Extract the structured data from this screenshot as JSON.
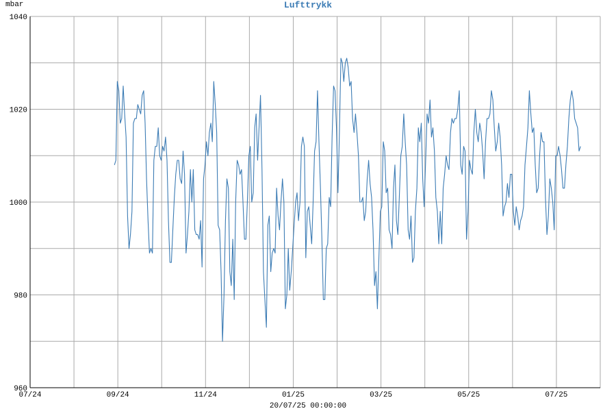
{
  "chart_data": {
    "type": "line",
    "title": "Lufttrykk",
    "ylabel": "mbar",
    "xlabel": "",
    "footer": "20/07/25 00:00:00",
    "ylim": [
      960,
      1040
    ],
    "yticks": [
      960,
      980,
      1000,
      1020,
      1040
    ],
    "x_ticklabels": [
      "07/24",
      "09/24",
      "11/24",
      "01/25",
      "03/25",
      "05/25",
      "07/25"
    ],
    "x_months_total": 13,
    "grid": true,
    "line_color": "#3b7bb4",
    "series": [
      {
        "values": [
          1008,
          1009,
          1026,
          1024,
          1017,
          1018,
          1025,
          1019,
          1014,
          997,
          990,
          993,
          998,
          1017,
          1018,
          1018,
          1021,
          1020,
          1019,
          1023,
          1024,
          1017,
          1005,
          996,
          989,
          990,
          989,
          1009,
          1012,
          1012,
          1016,
          1010,
          1009,
          1012,
          1011,
          1014,
          1009,
          996,
          987,
          987,
          994,
          1001,
          1006,
          1009,
          1009,
          1005,
          1004,
          1011,
          1006,
          989,
          993,
          998,
          1007,
          1000,
          1007,
          994,
          993,
          993,
          992,
          996,
          986,
          1005,
          1008,
          1013,
          1010,
          1015,
          1017,
          1013,
          1026,
          1021,
          1015,
          995,
          994,
          985,
          970,
          980,
          996,
          1005,
          1003,
          985,
          982,
          992,
          979,
          1000,
          1009,
          1008,
          1006,
          1007,
          1000,
          992,
          992,
          1000,
          1010,
          1012,
          1000,
          1002,
          1016,
          1019,
          1009,
          1016,
          1023,
          1007,
          985,
          979,
          973,
          995,
          997,
          985,
          989,
          990,
          989,
          1003,
          997,
          994,
          1000,
          1005,
          1000,
          977,
          980,
          990,
          981,
          985,
          990,
          995,
          1000,
          1002,
          996,
          1000,
          1012,
          1014,
          1012,
          988,
          998,
          999,
          995,
          991,
          1000,
          1011,
          1013,
          1024,
          1013,
          1003,
          992,
          979,
          979,
          990,
          991,
          1001,
          999,
          1014,
          1025,
          1024,
          1016,
          1002,
          1015,
          1031,
          1030,
          1026,
          1030,
          1031,
          1029,
          1025,
          1026,
          1018,
          1015,
          1019,
          1015,
          1010,
          1000,
          1000,
          1001,
          996,
          998,
          1005,
          1009,
          1004,
          1001,
          994,
          982,
          985,
          977,
          988,
          998,
          999,
          1013,
          1011,
          1002,
          1003,
          994,
          993,
          990,
          1003,
          1008,
          996,
          993,
          1001,
          1010,
          1012,
          1019,
          1013,
          1008,
          994,
          992,
          997,
          987,
          988,
          998,
          1003,
          1016,
          1013,
          1017,
          1005,
          999,
          1009,
          1019,
          1017,
          1022,
          1014,
          1016,
          1011,
          1001,
          998,
          991,
          998,
          991,
          1003,
          1006,
          1010,
          1008,
          1007,
          1015,
          1018,
          1017,
          1018,
          1018,
          1020,
          1024,
          1008,
          1006,
          1012,
          1011,
          992,
          998,
          1009,
          1007,
          1006,
          1015,
          1020,
          1015,
          1013,
          1017,
          1015,
          1011,
          1005,
          1013,
          1018,
          1018,
          1019,
          1024,
          1022,
          1016,
          1011,
          1013,
          1017,
          1014,
          1008,
          997,
          999,
          1000,
          1004,
          1001,
          1006,
          1006,
          998,
          995,
          999,
          997,
          994,
          996,
          997,
          999,
          1008,
          1012,
          1016,
          1024,
          1019,
          1015,
          1016,
          1008,
          1002,
          1003,
          1010,
          1015,
          1013,
          1013,
          1001,
          993,
          997,
          1005,
          1003,
          1000,
          994,
          1010,
          1010,
          1012,
          1010,
          1007,
          1003,
          1003,
          1008,
          1012,
          1018,
          1022,
          1024,
          1022,
          1018,
          1017,
          1016,
          1011,
          1012
        ]
      }
    ]
  }
}
